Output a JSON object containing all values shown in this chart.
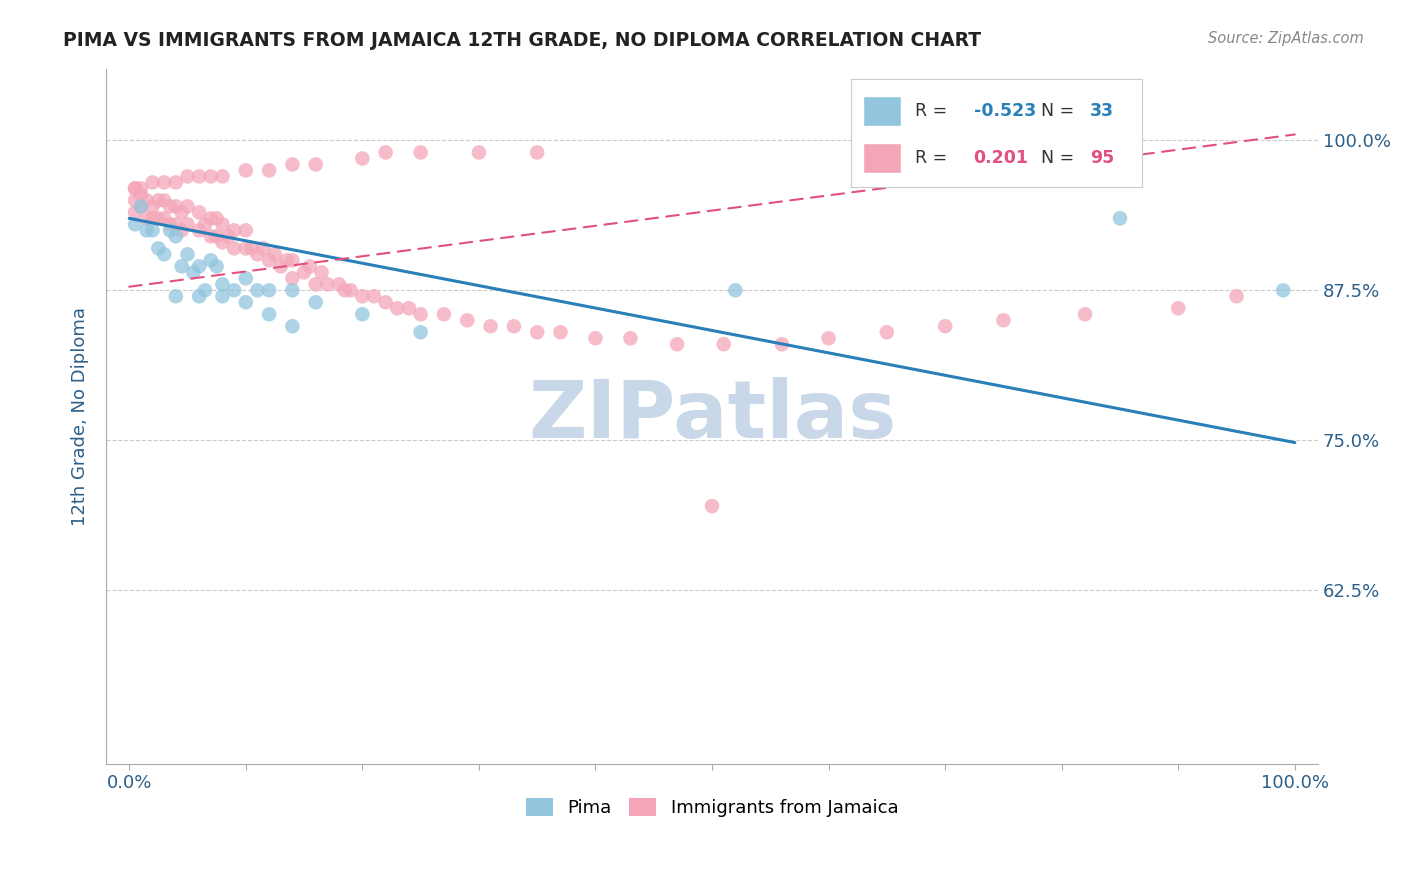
{
  "title": "PIMA VS IMMIGRANTS FROM JAMAICA 12TH GRADE, NO DIPLOMA CORRELATION CHART",
  "source": "Source: ZipAtlas.com",
  "ylabel": "12th Grade, No Diploma",
  "watermark": "ZIPatlas",
  "xlim": [
    -0.02,
    1.02
  ],
  "ylim": [
    0.48,
    1.06
  ],
  "yticks": [
    0.625,
    0.75,
    0.875,
    1.0
  ],
  "ytick_labels": [
    "62.5%",
    "75.0%",
    "87.5%",
    "100.0%"
  ],
  "pima_color": "#92c5de",
  "jamaica_color": "#f4a6b8",
  "pima_R": -0.523,
  "pima_N": 33,
  "jamaica_R": 0.201,
  "jamaica_N": 95,
  "pima_line_start_x": 0.0,
  "pima_line_start_y": 0.935,
  "pima_line_end_x": 1.0,
  "pima_line_end_y": 0.748,
  "jamaica_line_start_x": 0.0,
  "jamaica_line_start_y": 0.878,
  "jamaica_line_end_x": 1.0,
  "jamaica_line_end_y": 1.005,
  "pima_scatter_x": [
    0.005,
    0.01,
    0.015,
    0.02,
    0.025,
    0.03,
    0.035,
    0.04,
    0.045,
    0.05,
    0.055,
    0.06,
    0.065,
    0.07,
    0.075,
    0.08,
    0.09,
    0.1,
    0.11,
    0.12,
    0.14,
    0.16,
    0.2,
    0.25,
    0.08,
    0.06,
    0.04,
    0.1,
    0.12,
    0.14,
    0.52,
    0.85,
    0.99
  ],
  "pima_scatter_y": [
    0.93,
    0.945,
    0.925,
    0.925,
    0.91,
    0.905,
    0.925,
    0.92,
    0.895,
    0.905,
    0.89,
    0.895,
    0.875,
    0.9,
    0.895,
    0.88,
    0.875,
    0.885,
    0.875,
    0.875,
    0.875,
    0.865,
    0.855,
    0.84,
    0.87,
    0.87,
    0.87,
    0.865,
    0.855,
    0.845,
    0.875,
    0.935,
    0.875
  ],
  "jamaica_scatter_x": [
    0.005,
    0.005,
    0.005,
    0.01,
    0.01,
    0.015,
    0.015,
    0.02,
    0.02,
    0.025,
    0.025,
    0.03,
    0.03,
    0.035,
    0.035,
    0.04,
    0.04,
    0.045,
    0.045,
    0.05,
    0.05,
    0.06,
    0.06,
    0.065,
    0.07,
    0.07,
    0.075,
    0.075,
    0.08,
    0.08,
    0.085,
    0.09,
    0.09,
    0.1,
    0.1,
    0.105,
    0.11,
    0.115,
    0.12,
    0.125,
    0.13,
    0.135,
    0.14,
    0.14,
    0.15,
    0.155,
    0.16,
    0.165,
    0.17,
    0.18,
    0.185,
    0.19,
    0.2,
    0.21,
    0.22,
    0.23,
    0.24,
    0.25,
    0.27,
    0.29,
    0.31,
    0.33,
    0.35,
    0.37,
    0.4,
    0.43,
    0.47,
    0.51,
    0.56,
    0.6,
    0.65,
    0.7,
    0.75,
    0.82,
    0.9,
    0.95,
    0.005,
    0.01,
    0.02,
    0.03,
    0.04,
    0.05,
    0.06,
    0.07,
    0.08,
    0.1,
    0.12,
    0.14,
    0.16,
    0.2,
    0.22,
    0.25,
    0.3,
    0.35,
    0.5
  ],
  "jamaica_scatter_y": [
    0.94,
    0.95,
    0.96,
    0.945,
    0.955,
    0.935,
    0.95,
    0.935,
    0.945,
    0.935,
    0.95,
    0.935,
    0.95,
    0.93,
    0.945,
    0.93,
    0.945,
    0.925,
    0.94,
    0.93,
    0.945,
    0.925,
    0.94,
    0.93,
    0.92,
    0.935,
    0.92,
    0.935,
    0.915,
    0.93,
    0.92,
    0.91,
    0.925,
    0.91,
    0.925,
    0.91,
    0.905,
    0.91,
    0.9,
    0.905,
    0.895,
    0.9,
    0.885,
    0.9,
    0.89,
    0.895,
    0.88,
    0.89,
    0.88,
    0.88,
    0.875,
    0.875,
    0.87,
    0.87,
    0.865,
    0.86,
    0.86,
    0.855,
    0.855,
    0.85,
    0.845,
    0.845,
    0.84,
    0.84,
    0.835,
    0.835,
    0.83,
    0.83,
    0.83,
    0.835,
    0.84,
    0.845,
    0.85,
    0.855,
    0.86,
    0.87,
    0.96,
    0.96,
    0.965,
    0.965,
    0.965,
    0.97,
    0.97,
    0.97,
    0.97,
    0.975,
    0.975,
    0.98,
    0.98,
    0.985,
    0.99,
    0.99,
    0.99,
    0.99,
    0.695
  ],
  "title_color": "#222222",
  "axis_label_color": "#2c5f8a",
  "tick_label_color": "#2c5f8a",
  "grid_color": "#cccccc",
  "watermark_color": "#c8d8e8",
  "pima_line_color": "#2980b9",
  "jamaica_line_color": "#e05080",
  "legend_R_blue": "#2980b9",
  "legend_R_pink": "#e05080",
  "legend_label_blue": "Pima",
  "legend_label_pink": "Immigrants from Jamaica"
}
